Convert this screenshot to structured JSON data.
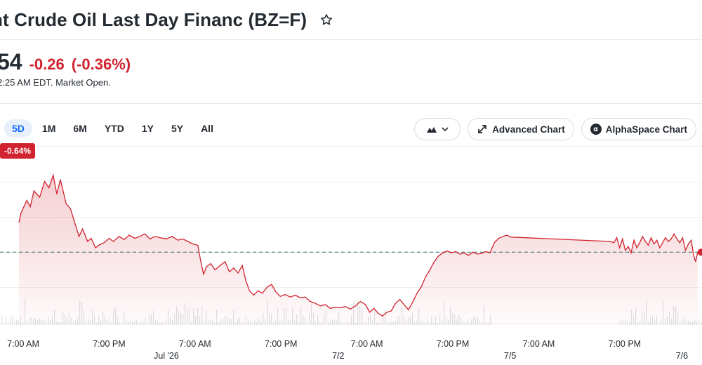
{
  "header": {
    "title": "nt Crude Oil Last Day Financ (BZ=F)",
    "star_icon": "star-outline-icon"
  },
  "quote": {
    "price": "54",
    "change": "-0.26",
    "change_pct": "(-0.36%)",
    "market_time": "2:25 AM EDT. Market Open."
  },
  "ranges": [
    "5D",
    "1M",
    "6M",
    "YTD",
    "1Y",
    "5Y",
    "All"
  ],
  "active_range": "5D",
  "tools": {
    "chart_type_icon": "mountain-chart-icon",
    "advanced_label": "Advanced Chart",
    "alpha_label": "AlphaSpace Chart"
  },
  "colors": {
    "negative": "#d1232f",
    "accent": "#0f69ff"
  },
  "chart_data": {
    "type": "area",
    "change_badge": "-0.64%",
    "tick_labels": [
      {
        "t": 0,
        "label": "7:00 AM"
      },
      {
        "t": 12,
        "label": "7:00 PM"
      },
      {
        "t": 20,
        "label": "Jul '26"
      },
      {
        "t": 24,
        "label": "7:00 AM"
      },
      {
        "t": 36,
        "label": "7:00 PM"
      },
      {
        "t": 44,
        "label": "7/2"
      },
      {
        "t": 48,
        "label": "7:00 AM"
      },
      {
        "t": 60,
        "label": "7:00 PM"
      },
      {
        "t": 68,
        "label": "7/5"
      },
      {
        "t": 72,
        "label": "7:00 AM"
      },
      {
        "t": 84,
        "label": "7:00 PM"
      },
      {
        "t": 92,
        "label": "7/6"
      }
    ],
    "previous_close_level": -0.27,
    "series": [
      {
        "values": [
          [
            -0.6,
            0.2
          ],
          [
            -0.3,
            0.35
          ],
          [
            0.5,
            0.55
          ],
          [
            1.0,
            0.45
          ],
          [
            1.5,
            0.7
          ],
          [
            2.3,
            0.6
          ],
          [
            3.0,
            0.85
          ],
          [
            3.6,
            0.75
          ],
          [
            4.2,
            0.95
          ],
          [
            4.7,
            0.65
          ],
          [
            5.2,
            0.88
          ],
          [
            6.0,
            0.5
          ],
          [
            6.6,
            0.42
          ],
          [
            7.2,
            0.2
          ],
          [
            7.8,
            -0.02
          ],
          [
            8.3,
            0.1
          ],
          [
            9.0,
            -0.1
          ],
          [
            9.5,
            -0.05
          ],
          [
            10.1,
            -0.2
          ],
          [
            10.7,
            -0.15
          ],
          [
            11.3,
            -0.12
          ],
          [
            12.0,
            -0.05
          ],
          [
            12.6,
            -0.1
          ],
          [
            13.4,
            -0.02
          ],
          [
            14.1,
            -0.07
          ],
          [
            14.8,
            0.0
          ],
          [
            15.6,
            -0.05
          ],
          [
            16.3,
            -0.02
          ],
          [
            17.0,
            0.02
          ],
          [
            17.7,
            -0.06
          ],
          [
            18.4,
            -0.02
          ],
          [
            19.1,
            -0.04
          ],
          [
            20.0,
            -0.06
          ],
          [
            20.8,
            -0.02
          ],
          [
            21.6,
            -0.08
          ],
          [
            22.3,
            -0.06
          ],
          [
            23.0,
            -0.1
          ],
          [
            23.7,
            -0.14
          ],
          [
            24.4,
            -0.16
          ],
          [
            24.8,
            -0.42
          ],
          [
            25.2,
            -0.62
          ],
          [
            25.6,
            -0.5
          ],
          [
            26.2,
            -0.45
          ],
          [
            26.8,
            -0.55
          ],
          [
            27.5,
            -0.48
          ],
          [
            28.2,
            -0.42
          ],
          [
            28.8,
            -0.58
          ],
          [
            29.4,
            -0.52
          ],
          [
            30.0,
            -0.6
          ],
          [
            30.6,
            -0.48
          ],
          [
            31.1,
            -0.72
          ],
          [
            31.6,
            -0.88
          ],
          [
            32.2,
            -0.95
          ],
          [
            32.8,
            -0.88
          ],
          [
            33.4,
            -0.92
          ],
          [
            34.1,
            -0.82
          ],
          [
            34.7,
            -0.78
          ],
          [
            35.3,
            -0.9
          ],
          [
            35.9,
            -0.97
          ],
          [
            36.6,
            -0.94
          ],
          [
            37.3,
            -0.98
          ],
          [
            38.0,
            -0.95
          ],
          [
            38.7,
            -0.99
          ],
          [
            39.4,
            -0.98
          ],
          [
            40.1,
            -1.05
          ],
          [
            40.8,
            -1.08
          ],
          [
            41.5,
            -1.12
          ],
          [
            42.2,
            -1.1
          ],
          [
            42.9,
            -1.16
          ],
          [
            43.6,
            -1.14
          ],
          [
            44.3,
            -1.15
          ],
          [
            45.0,
            -1.13
          ],
          [
            45.7,
            -1.17
          ],
          [
            46.4,
            -1.12
          ],
          [
            47.1,
            -1.05
          ],
          [
            47.8,
            -1.1
          ],
          [
            48.4,
            -1.22
          ],
          [
            49.0,
            -1.16
          ],
          [
            49.6,
            -1.24
          ],
          [
            50.2,
            -1.28
          ],
          [
            50.8,
            -1.22
          ],
          [
            51.4,
            -1.2
          ],
          [
            52.0,
            -1.08
          ],
          [
            52.6,
            -1.02
          ],
          [
            53.2,
            -1.1
          ],
          [
            53.8,
            -1.18
          ],
          [
            54.4,
            -1.06
          ],
          [
            55.0,
            -0.92
          ],
          [
            55.6,
            -0.82
          ],
          [
            56.2,
            -0.66
          ],
          [
            56.8,
            -0.55
          ],
          [
            57.4,
            -0.42
          ],
          [
            58.0,
            -0.33
          ],
          [
            58.6,
            -0.28
          ],
          [
            59.2,
            -0.25
          ],
          [
            59.8,
            -0.28
          ],
          [
            60.4,
            -0.26
          ],
          [
            61.0,
            -0.3
          ],
          [
            61.6,
            -0.28
          ],
          [
            62.2,
            -0.32
          ],
          [
            62.8,
            -0.27
          ],
          [
            63.4,
            -0.3
          ],
          [
            64.0,
            -0.29
          ],
          [
            64.6,
            -0.26
          ],
          [
            65.2,
            -0.28
          ],
          [
            65.8,
            -0.12
          ],
          [
            66.4,
            -0.05
          ],
          [
            67.0,
            -0.02
          ],
          [
            67.6,
            0.0
          ],
          [
            68.0,
            -0.03
          ],
          [
            82.0,
            -0.1
          ],
          [
            82.5,
            -0.12
          ],
          [
            82.9,
            -0.04
          ],
          [
            83.3,
            -0.2
          ],
          [
            83.7,
            -0.06
          ],
          [
            84.1,
            -0.24
          ],
          [
            84.5,
            -0.18
          ],
          [
            84.9,
            -0.28
          ],
          [
            85.3,
            -0.08
          ],
          [
            85.7,
            -0.2
          ],
          [
            86.1,
            -0.12
          ],
          [
            86.5,
            -0.02
          ],
          [
            86.9,
            -0.1
          ],
          [
            87.3,
            -0.16
          ],
          [
            87.7,
            -0.04
          ],
          [
            88.1,
            -0.14
          ],
          [
            88.5,
            -0.08
          ],
          [
            88.9,
            -0.2
          ],
          [
            89.3,
            -0.12
          ],
          [
            89.7,
            -0.04
          ],
          [
            90.1,
            -0.1
          ],
          [
            90.5,
            -0.06
          ],
          [
            90.9,
            0.02
          ],
          [
            91.3,
            -0.06
          ],
          [
            91.7,
            -0.12
          ],
          [
            92.1,
            -0.04
          ],
          [
            92.5,
            -0.24
          ],
          [
            92.9,
            -0.14
          ],
          [
            93.3,
            -0.08
          ],
          [
            93.6,
            -0.3
          ],
          [
            93.9,
            -0.42
          ],
          [
            94.2,
            -0.27
          ]
        ]
      }
    ]
  }
}
